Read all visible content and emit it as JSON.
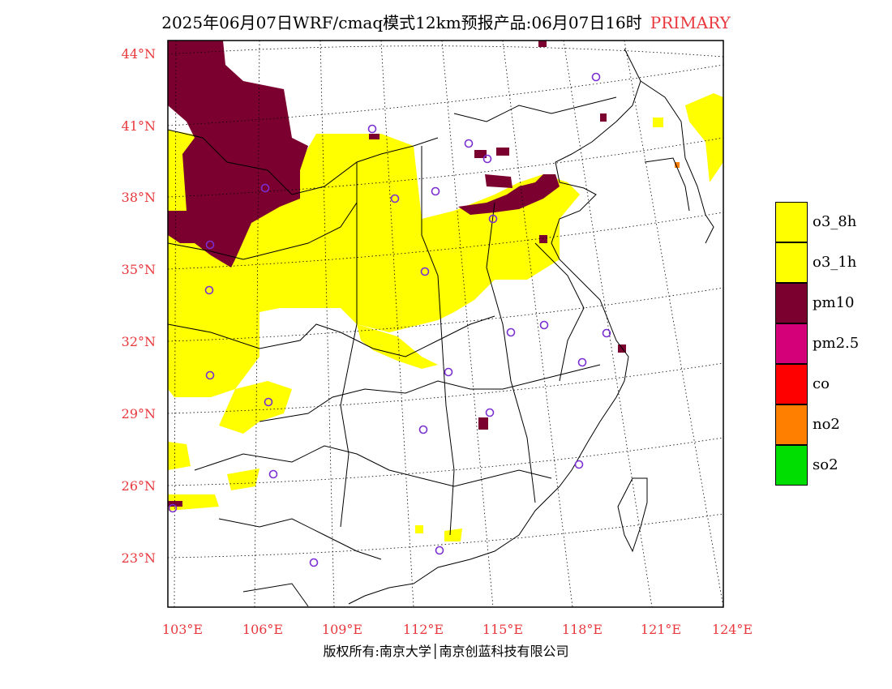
{
  "header": {
    "title": "2025年06月07日WRF/cmaq模式12km预报产品:06月07日16时",
    "tag": "PRIMARY"
  },
  "footer": {
    "copyright": "版权所有:南京大学│南京创蓝科技有限公司"
  },
  "axes": {
    "lat_labels": [
      "44°N",
      "41°N",
      "38°N",
      "35°N",
      "32°N",
      "29°N",
      "26°N",
      "23°N"
    ],
    "lon_labels": [
      "103°E",
      "106°E",
      "109°E",
      "112°E",
      "115°E",
      "118°E",
      "121°E",
      "124°E"
    ],
    "label_color": "#e8383d"
  },
  "legend": {
    "items": [
      {
        "label": "o3_8h",
        "color": "#ffff00"
      },
      {
        "label": "o3_1h",
        "color": "#ffff00"
      },
      {
        "label": "pm10",
        "color": "#7b0030"
      },
      {
        "label": "pm2.5",
        "color": "#d4007a"
      },
      {
        "label": "co",
        "color": "#ff0000"
      },
      {
        "label": "no2",
        "color": "#ff7f00"
      },
      {
        "label": "so2",
        "color": "#00dd00"
      }
    ]
  },
  "map_colors": {
    "o3": "#ffff00",
    "pm10": "#7b0030",
    "pm25": "#d4007a",
    "no2": "#ff7f00",
    "station": "#7b2fd1",
    "boundary": "#000000",
    "grid": "#000000"
  }
}
